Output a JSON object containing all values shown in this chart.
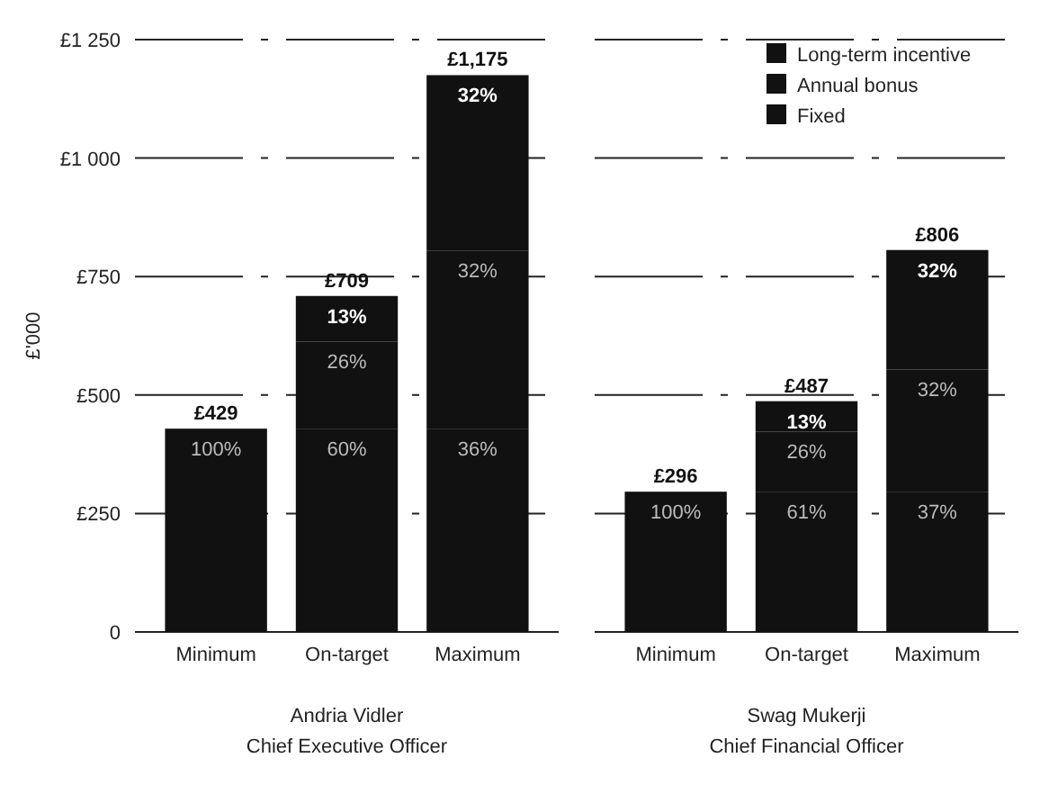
{
  "chart_data": [
    {
      "type": "bar",
      "stacked": true,
      "ylabel": "£'000",
      "xlabel": "Andria Vidler\nChief Executive Officer",
      "categories": [
        "Minimum",
        "On-target",
        "Maximum"
      ],
      "series": [
        {
          "color": "#111111",
          "values": [
            429,
            429,
            429
          ]
        },
        {
          "color": "#111111",
          "values": [
            null,
            184,
            376
          ]
        },
        {
          "color": "#111111",
          "values": [
            null,
            96,
            370
          ]
        }
      ],
      "totals": [
        "£429",
        "£709",
        "£1,175"
      ],
      "ylim": [
        0,
        1250
      ],
      "yticks": [
        0,
        {
          "value": 250,
          "label": "£250"
        },
        {
          "value": 500,
          "label": "£500"
        },
        {
          "value": 750,
          "label": "£750"
        },
        {
          "value": 1000,
          "label": "£1 000"
        },
        {
          "value": 1250,
          "label": "£1 250"
        }
      ],
      "grid": "y",
      "annotations": [
        {
          "text": "100%",
          "x": "Minimum",
          "y": 429
        },
        {
          "text": "60%",
          "x": "On-target",
          "y": 429
        },
        {
          "text": "26%",
          "x": "On-target",
          "y": 613
        },
        {
          "text": "13%",
          "x": "On-target",
          "y": 709
        },
        {
          "text": "36%",
          "x": "Maximum",
          "y": 429
        },
        {
          "text": "32%",
          "x": "Maximum",
          "y": 805
        },
        {
          "text": "32%",
          "x": "Maximum",
          "y": 1175
        }
      ]
    },
    {
      "type": "bar",
      "stacked": true,
      "xlabel": "Swag Mukerji\nChief Financial Officer",
      "categories": [
        "Minimum",
        "On-target",
        "Maximum"
      ],
      "series": [
        {
          "name": "Fixed",
          "color": "#111111",
          "values": [
            296,
            296,
            296
          ]
        },
        {
          "name": "Annual bonus",
          "color": "#111111",
          "values": [
            null,
            127,
            258
          ]
        },
        {
          "name": "Long-term incentive",
          "color": "#111111",
          "values": [
            null,
            64,
            252
          ]
        }
      ],
      "totals": [
        "£296",
        "£487",
        "£806"
      ],
      "ylim": [
        0,
        1250
      ],
      "yticks": [
        0,
        250,
        500,
        750,
        1000,
        1250
      ],
      "tick_labels": "x",
      "grid": "y",
      "legend": "top right",
      "annotations": [
        {
          "text": "100%",
          "x": "Minimum",
          "y": 296
        },
        {
          "text": "61%",
          "x": "On-target",
          "y": 296
        },
        {
          "text": "26%",
          "x": "On-target",
          "y": 423
        },
        {
          "text": "13%",
          "x": "On-target",
          "y": 487
        },
        {
          "text": "37%",
          "x": "Maximum",
          "y": 296
        },
        {
          "text": "32%",
          "x": "Maximum",
          "y": 554
        },
        {
          "text": "32%",
          "x": "Maximum",
          "y": 806
        }
      ]
    }
  ]
}
